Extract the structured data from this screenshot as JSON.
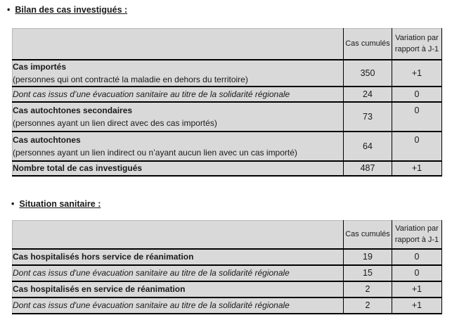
{
  "colors": {
    "page_background": "#ffffff",
    "cell_background": "#d9d9d9",
    "table_border": "#000000",
    "text": "#1a1a1a"
  },
  "bullet": "•",
  "section1": {
    "heading": "Bilan des cas investigués :",
    "table": {
      "col_headers": [
        "Cas cumulés",
        "Variation par rapport à J-1"
      ],
      "rows": [
        {
          "label": "Cas importés",
          "sub": "(personnes qui ont contracté la maladie en dehors du territoire)",
          "style": "bold",
          "cumul": "350",
          "variation": "+1"
        },
        {
          "label": "Dont cas issus d’une évacuation sanitaire au titre de la solidarité régionale",
          "style": "italic",
          "cumul": "24",
          "variation": "0"
        },
        {
          "label": "Cas autochtones secondaires",
          "sub": "(personnes ayant un lien direct avec des cas importés)",
          "style": "bold",
          "cumul": "73",
          "variation": "0",
          "var_align": "top"
        },
        {
          "label": "Cas autochtones",
          "sub": "(personnes ayant un lien indirect ou n’ayant aucun lien avec un cas importé)",
          "style": "bold",
          "cumul": "64",
          "variation": "0",
          "var_align": "top"
        },
        {
          "label": "Nombre total de cas investigués",
          "style": "bold",
          "cumul": "487",
          "variation": "+1"
        }
      ]
    }
  },
  "section2": {
    "heading": "Situation sanitaire :",
    "table": {
      "col_headers": [
        "Cas cumulés",
        "Variation par rapport à J-1"
      ],
      "rows": [
        {
          "label": "Cas hospitalisés hors service de réanimation",
          "style": "bold",
          "cumul": "19",
          "variation": "0"
        },
        {
          "label": "Dont cas issus d'une évacuation sanitaire au titre de la solidarité régionale",
          "style": "italic",
          "cumul": "15",
          "variation": "0"
        },
        {
          "label": "Cas hospitalisés en service de réanimation",
          "style": "bold",
          "cumul": "2",
          "variation": "+1"
        },
        {
          "label": "Dont cas issus d'une évacuation sanitaire au titre de la solidarité régionale",
          "style": "italic",
          "cumul": "2",
          "variation": "+1"
        }
      ]
    }
  }
}
